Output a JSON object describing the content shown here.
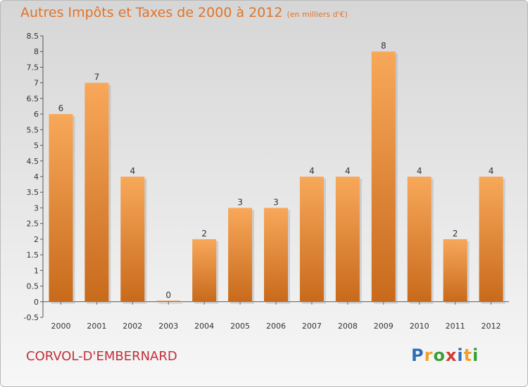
{
  "title": "Autres Impôts et Taxes de 2000 à 2012",
  "subtitle": "(en milliers d'€)",
  "commune": "CORVOL-D'EMBERNARD",
  "logo": {
    "letters": [
      "P",
      "r",
      "o",
      "x",
      "i",
      "t",
      "i"
    ],
    "colors": [
      "#2f6fb5",
      "#f0a12a",
      "#3a9e3a",
      "#d43a2e",
      "#2f6fb5",
      "#f0a12a",
      "#3a9e3a"
    ]
  },
  "colors": {
    "bar_top": "#f8a85a",
    "bar_bottom": "#c86a1c",
    "title": "#e0742a",
    "commune": "#c0303a"
  },
  "chart_data": {
    "type": "bar",
    "categories": [
      "2000",
      "2001",
      "2002",
      "2003",
      "2004",
      "2005",
      "2006",
      "2007",
      "2008",
      "2009",
      "2010",
      "2011",
      "2012"
    ],
    "values": [
      6,
      7,
      4,
      0,
      2,
      3,
      3,
      4,
      4,
      8,
      4,
      2,
      4
    ],
    "value_labels": [
      "6",
      "7",
      "4",
      "0",
      "2",
      "3",
      "3",
      "4",
      "4",
      "8",
      "4",
      "2",
      "4"
    ],
    "title": "Autres Impôts et Taxes de 2000 à 2012",
    "subtitle": "(en milliers d'€)",
    "xlabel": "",
    "ylabel": "",
    "ylim": [
      -0.5,
      8.5
    ],
    "yticks": [
      "8.5",
      "8",
      "7.5",
      "7",
      "6.5",
      "6",
      "5.5",
      "5",
      "4.5",
      "4",
      "3.5",
      "3",
      "2.5",
      "2",
      "1.5",
      "1",
      "0.5",
      "0",
      "-0.5"
    ],
    "grid": false,
    "legend": "none"
  }
}
